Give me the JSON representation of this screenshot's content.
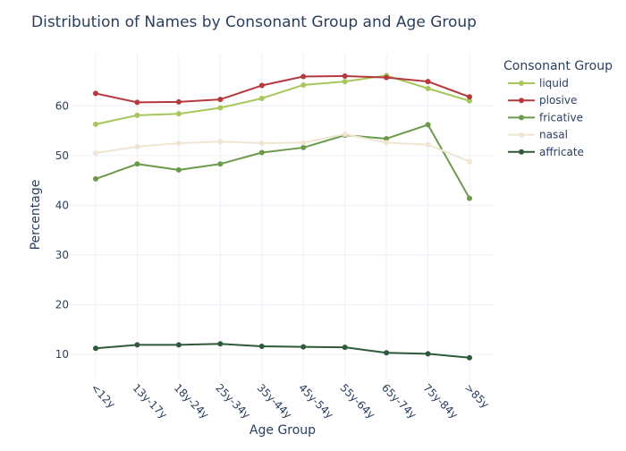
{
  "chart_data": {
    "type": "line",
    "title": "Distribution of Names by Consonant Group and Age Group",
    "xlabel": "Age Group",
    "ylabel": "Percentage",
    "categories": [
      "<12y",
      "13y-17y",
      "18y-24y",
      "25y-34y",
      "35y-44y",
      "45y-54y",
      "55y-64y",
      "65y-74y",
      "75y-84y",
      ">85y"
    ],
    "ylim": [
      5.3,
      70.5
    ],
    "yticks": [
      10,
      20,
      30,
      40,
      50,
      60
    ],
    "grid": true,
    "legend": {
      "title": "Consonant Group",
      "position": "top-right"
    },
    "series": [
      {
        "name": "liquid",
        "color": "#a6c75a",
        "values": [
          56.3,
          58.1,
          58.4,
          59.6,
          61.5,
          64.2,
          64.9,
          66.1,
          63.5,
          61.0
        ]
      },
      {
        "name": "plosive",
        "color": "#b5393d",
        "values": [
          62.5,
          60.7,
          60.8,
          61.3,
          64.1,
          65.9,
          66.0,
          65.7,
          64.9,
          61.8
        ]
      },
      {
        "name": "fricative",
        "color": "#6a9a4a",
        "values": [
          45.3,
          48.3,
          47.1,
          48.3,
          50.6,
          51.6,
          54.1,
          53.4,
          56.2,
          41.4
        ]
      },
      {
        "name": "nasal",
        "color": "#efe6d2",
        "values": [
          50.5,
          51.8,
          52.5,
          52.8,
          52.5,
          52.6,
          54.3,
          52.6,
          52.2,
          48.8
        ]
      },
      {
        "name": "affricate",
        "color": "#2f5a3a",
        "values": [
          11.2,
          11.9,
          11.9,
          12.1,
          11.6,
          11.5,
          11.4,
          10.3,
          10.1,
          9.3
        ]
      }
    ]
  }
}
